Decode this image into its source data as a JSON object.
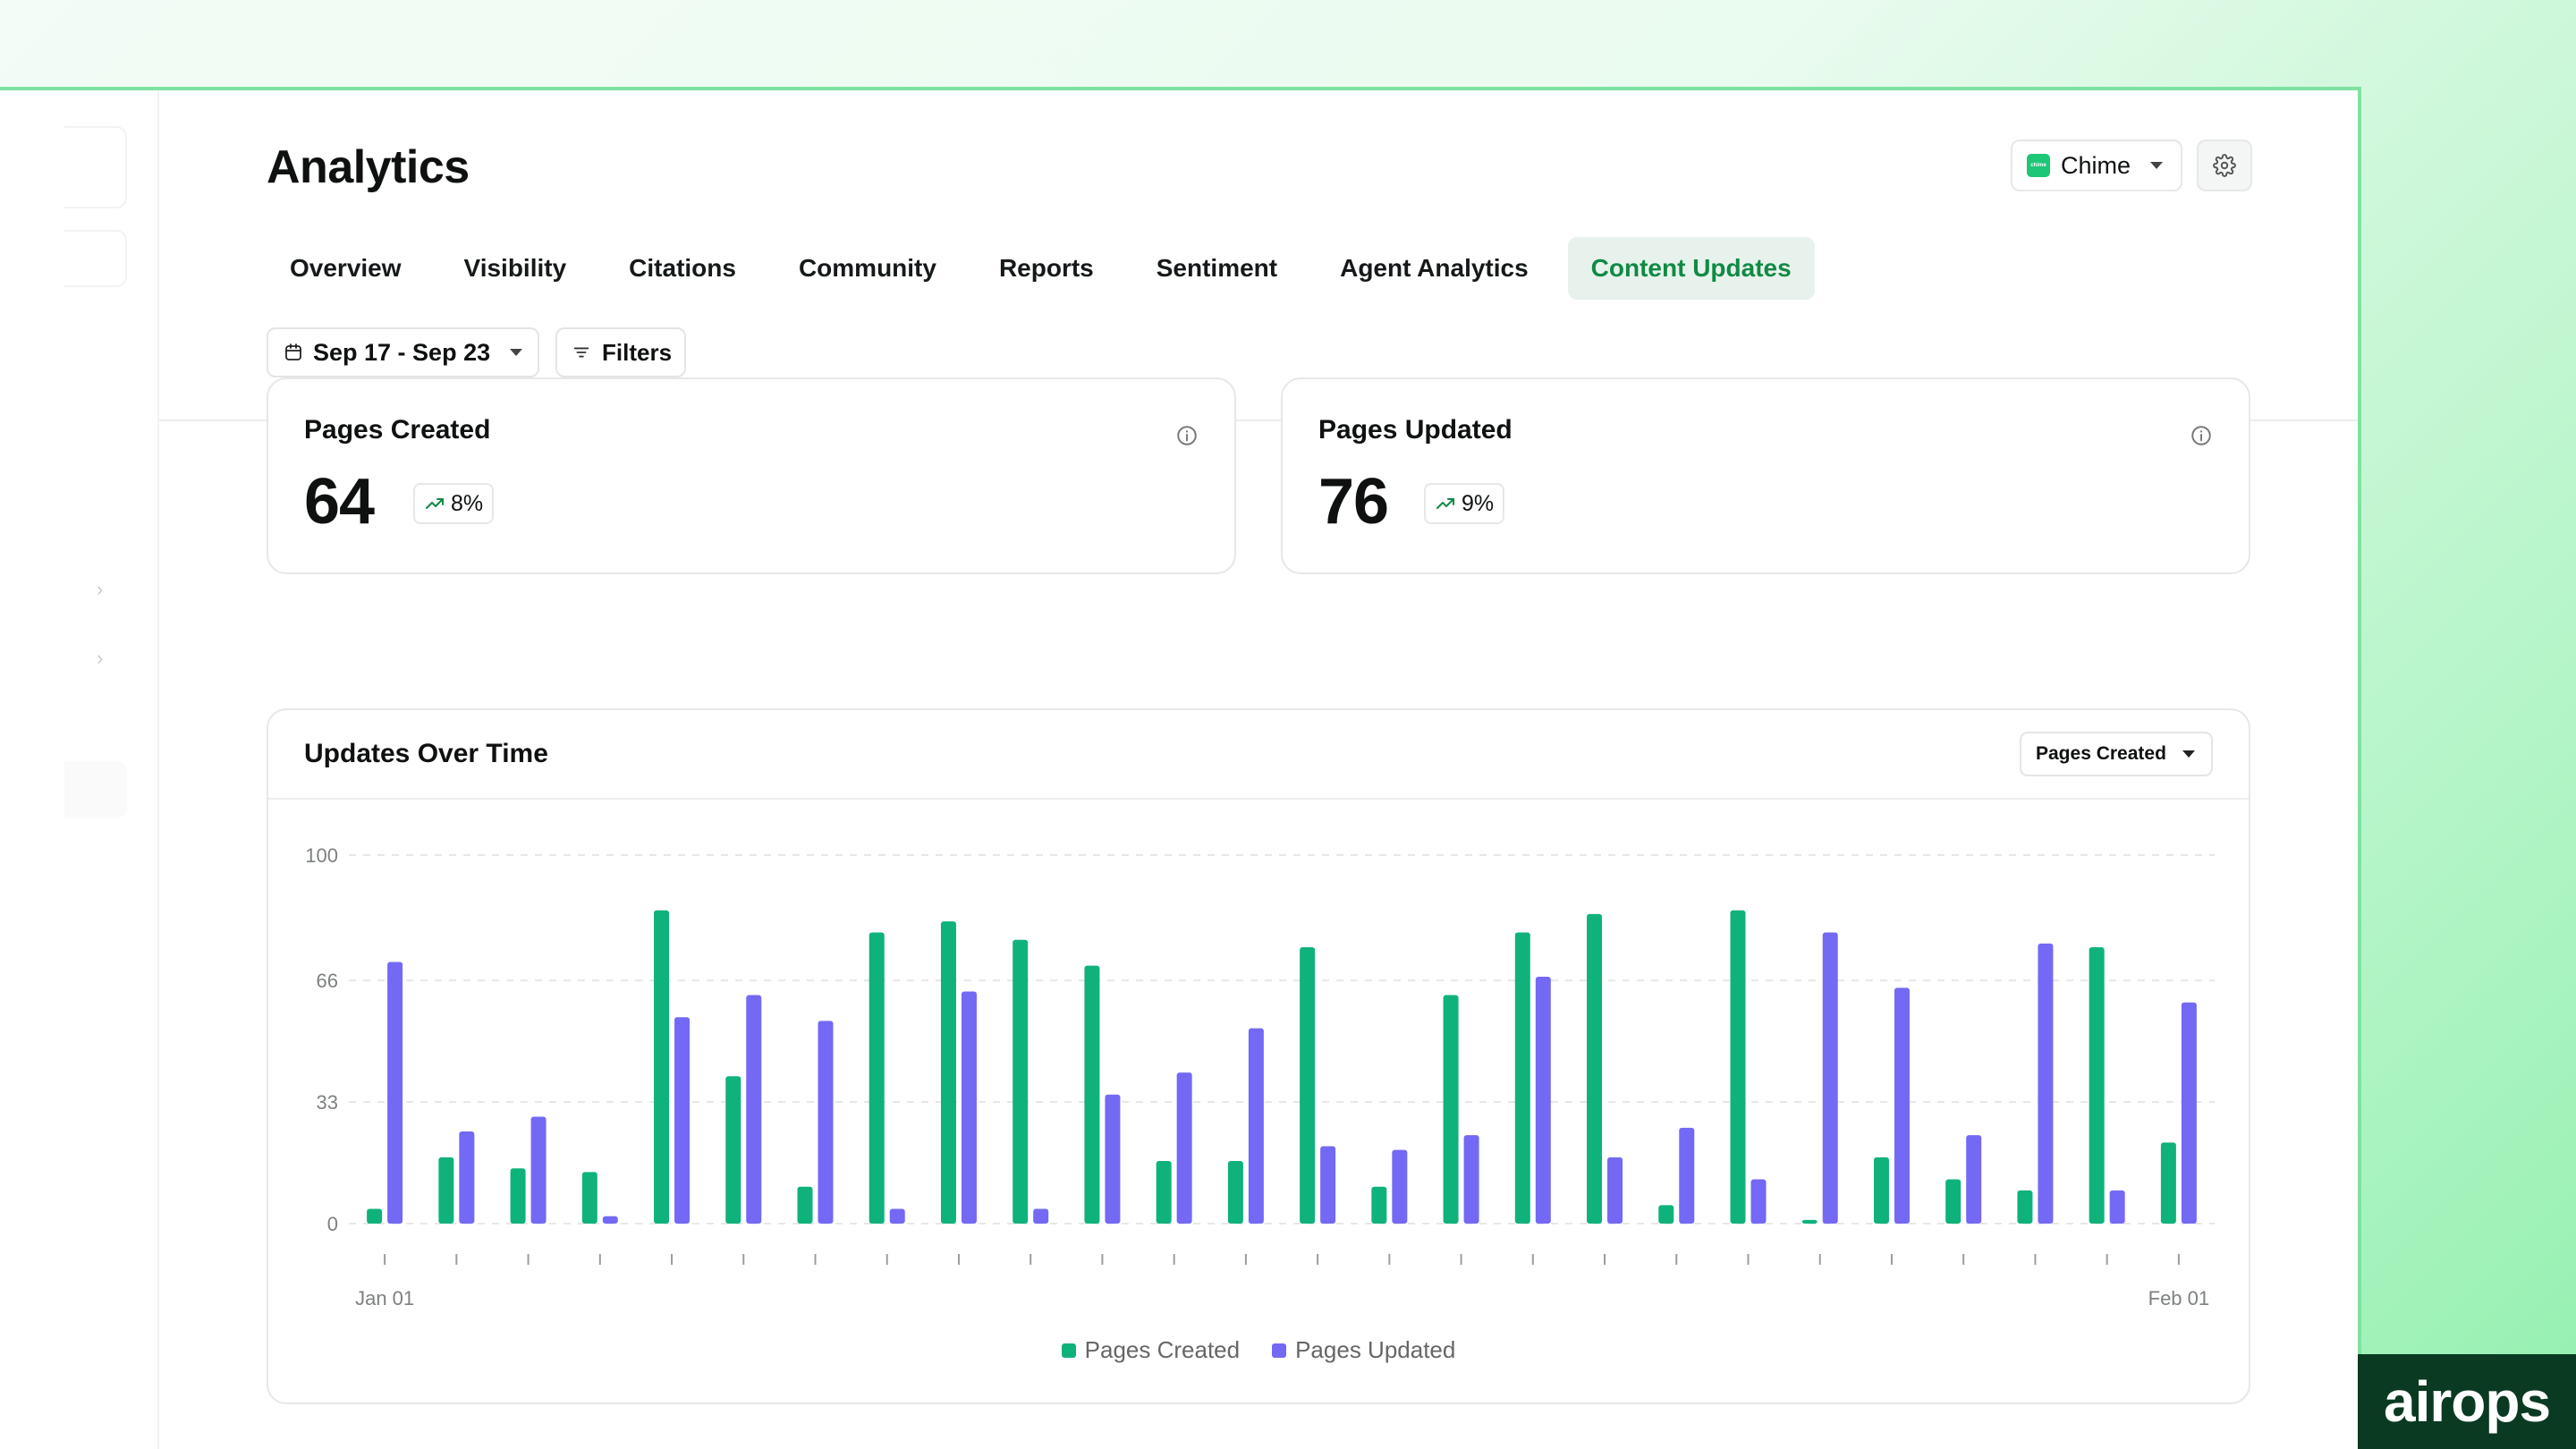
{
  "page": {
    "title": "Analytics"
  },
  "brand_select": {
    "label": "Chime",
    "logo_text": "chime"
  },
  "tabs": [
    {
      "label": "Overview",
      "active": false
    },
    {
      "label": "Visibility",
      "active": false
    },
    {
      "label": "Citations",
      "active": false
    },
    {
      "label": "Community",
      "active": false
    },
    {
      "label": "Reports",
      "active": false
    },
    {
      "label": "Sentiment",
      "active": false
    },
    {
      "label": "Agent Analytics",
      "active": false
    },
    {
      "label": "Content Updates",
      "active": true
    }
  ],
  "toolbar": {
    "date_range": "Sep 17 - Sep 23",
    "filters_label": "Filters"
  },
  "kpis": [
    {
      "label": "Pages Created",
      "value": "64",
      "delta": "8%"
    },
    {
      "label": "Pages Updated",
      "value": "76",
      "delta": "9%"
    }
  ],
  "chart_card": {
    "title": "Updates Over Time",
    "metric_select": "Pages Created"
  },
  "colors": {
    "accent": "#108a45",
    "created": "#10b27c",
    "updated": "#7469f4"
  },
  "watermark": "airops",
  "chart_data": {
    "type": "bar",
    "title": "Updates Over Time",
    "x_labels": {
      "first": "Jan 01",
      "last": "Feb 01"
    },
    "yticks": [
      0,
      33,
      66,
      100
    ],
    "ylim": [
      0,
      100
    ],
    "grid": true,
    "legend_position": "bottom",
    "series": [
      {
        "name": "Pages Created",
        "color": "#10b27c",
        "values": [
          4,
          18,
          15,
          14,
          85,
          40,
          10,
          79,
          82,
          77,
          70,
          17,
          17,
          75,
          10,
          62,
          79,
          84,
          5,
          85,
          1,
          18,
          12,
          9,
          75,
          22
        ]
      },
      {
        "name": "Pages Updated",
        "color": "#7469f4",
        "values": [
          71,
          25,
          29,
          2,
          56,
          62,
          55,
          4,
          63,
          4,
          35,
          41,
          53,
          21,
          20,
          24,
          67,
          18,
          26,
          12,
          79,
          64,
          24,
          76,
          9,
          60
        ]
      }
    ]
  }
}
